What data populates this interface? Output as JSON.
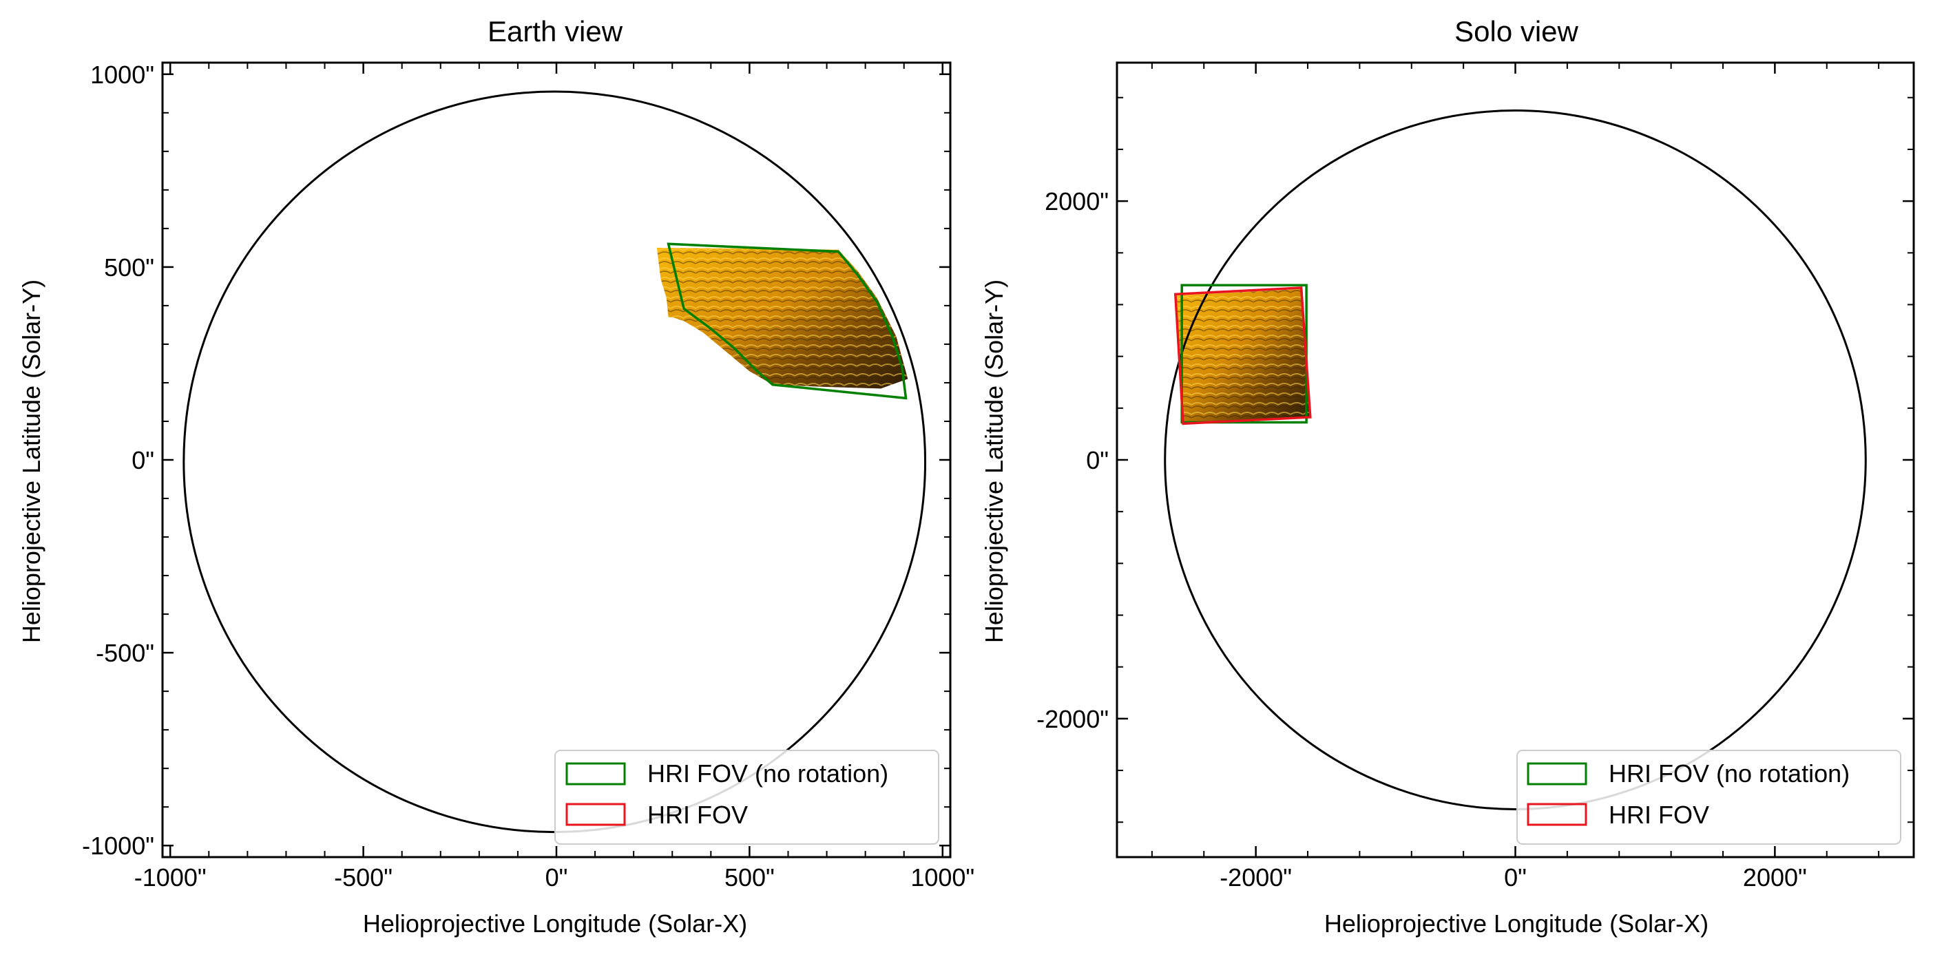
{
  "colors": {
    "limb": "#000000",
    "fov_norot": "#008000",
    "fov_rot": "#e8141e",
    "img_bright": "#f5b10a",
    "img_mid": "#c57c06",
    "img_dark": "#2a1a06"
  },
  "chart_data": [
    {
      "type": "scatter",
      "title": "Earth view",
      "xlabel": "Helioprojective Longitude (Solar-X)",
      "ylabel": "Helioprojective Latitude (Solar-Y)",
      "xlim": [
        -1020,
        1020
      ],
      "ylim": [
        -1030,
        1030
      ],
      "xticks": [
        -1000,
        -500,
        0,
        500,
        1000
      ],
      "xticklabels": [
        "-1000\"",
        "-500\"",
        "0\"",
        "500\"",
        "1000\""
      ],
      "yticks": [
        -1000,
        -500,
        0,
        500,
        1000
      ],
      "yticklabels": [
        "-1000\"",
        "-500\"",
        "0\"",
        "500\"",
        "1000\""
      ],
      "limb": {
        "cx": -5,
        "cy": -5,
        "r": 960
      },
      "image_region": {
        "outline": [
          [
            260,
            550
          ],
          [
            500,
            548
          ],
          [
            730,
            545
          ],
          [
            780,
            490
          ],
          [
            830,
            420
          ],
          [
            880,
            320
          ],
          [
            910,
            210
          ],
          [
            840,
            185
          ],
          [
            680,
            190
          ],
          [
            560,
            195
          ],
          [
            500,
            230
          ],
          [
            440,
            280
          ],
          [
            380,
            330
          ],
          [
            330,
            360
          ],
          [
            300,
            370
          ],
          [
            290,
            370
          ],
          [
            285,
            420
          ],
          [
            270,
            470
          ],
          [
            260,
            550
          ]
        ]
      },
      "fov": [
        {
          "name": "HRI FOV (no rotation)",
          "kind": "norot",
          "points": [
            [
              290,
              560
            ],
            [
              730,
              540
            ],
            [
              780,
              480
            ],
            [
              830,
              410
            ],
            [
              870,
              320
            ],
            [
              895,
              240
            ],
            [
              905,
              160
            ],
            [
              560,
              195
            ],
            [
              520,
              230
            ],
            [
              460,
              290
            ],
            [
              400,
              340
            ],
            [
              330,
              392
            ]
          ]
        },
        {
          "name": "HRI FOV",
          "kind": "rot",
          "points": []
        }
      ],
      "legend": {
        "loc": "lower right",
        "entries": [
          "HRI FOV (no rotation)",
          "HRI FOV"
        ]
      }
    },
    {
      "type": "scatter",
      "title": "Solo view",
      "xlabel": "Helioprojective Longitude (Solar-X)",
      "ylabel": "Helioprojective Latitude (Solar-Y)",
      "xlim": [
        -3070,
        3070
      ],
      "ylim": [
        -3070,
        3070
      ],
      "xticks": [
        -2000,
        0,
        2000
      ],
      "xticklabels": [
        "-2000\"",
        "0\"",
        "2000\""
      ],
      "yticks": [
        -2000,
        0,
        2000
      ],
      "yticklabels": [
        "-2000\"",
        "0\"",
        "2000\""
      ],
      "limb": {
        "cx": 0,
        "cy": 0,
        "r": 2700
      },
      "image_region": {
        "outline": [
          [
            -2620,
            1270
          ],
          [
            -1640,
            1320
          ],
          [
            -1580,
            330
          ],
          [
            -2570,
            280
          ]
        ]
      },
      "fov": [
        {
          "name": "HRI FOV (no rotation)",
          "kind": "norot",
          "points": [
            [
              -2570,
              1350
            ],
            [
              -1610,
              1350
            ],
            [
              -1610,
              290
            ],
            [
              -2570,
              290
            ]
          ]
        },
        {
          "name": "HRI FOV",
          "kind": "rot",
          "points": [
            [
              -2620,
              1280
            ],
            [
              -1650,
              1330
            ],
            [
              -1580,
              330
            ],
            [
              -2560,
              280
            ]
          ]
        }
      ],
      "legend": {
        "loc": "lower right",
        "entries": [
          "HRI FOV (no rotation)",
          "HRI FOV"
        ]
      }
    }
  ]
}
